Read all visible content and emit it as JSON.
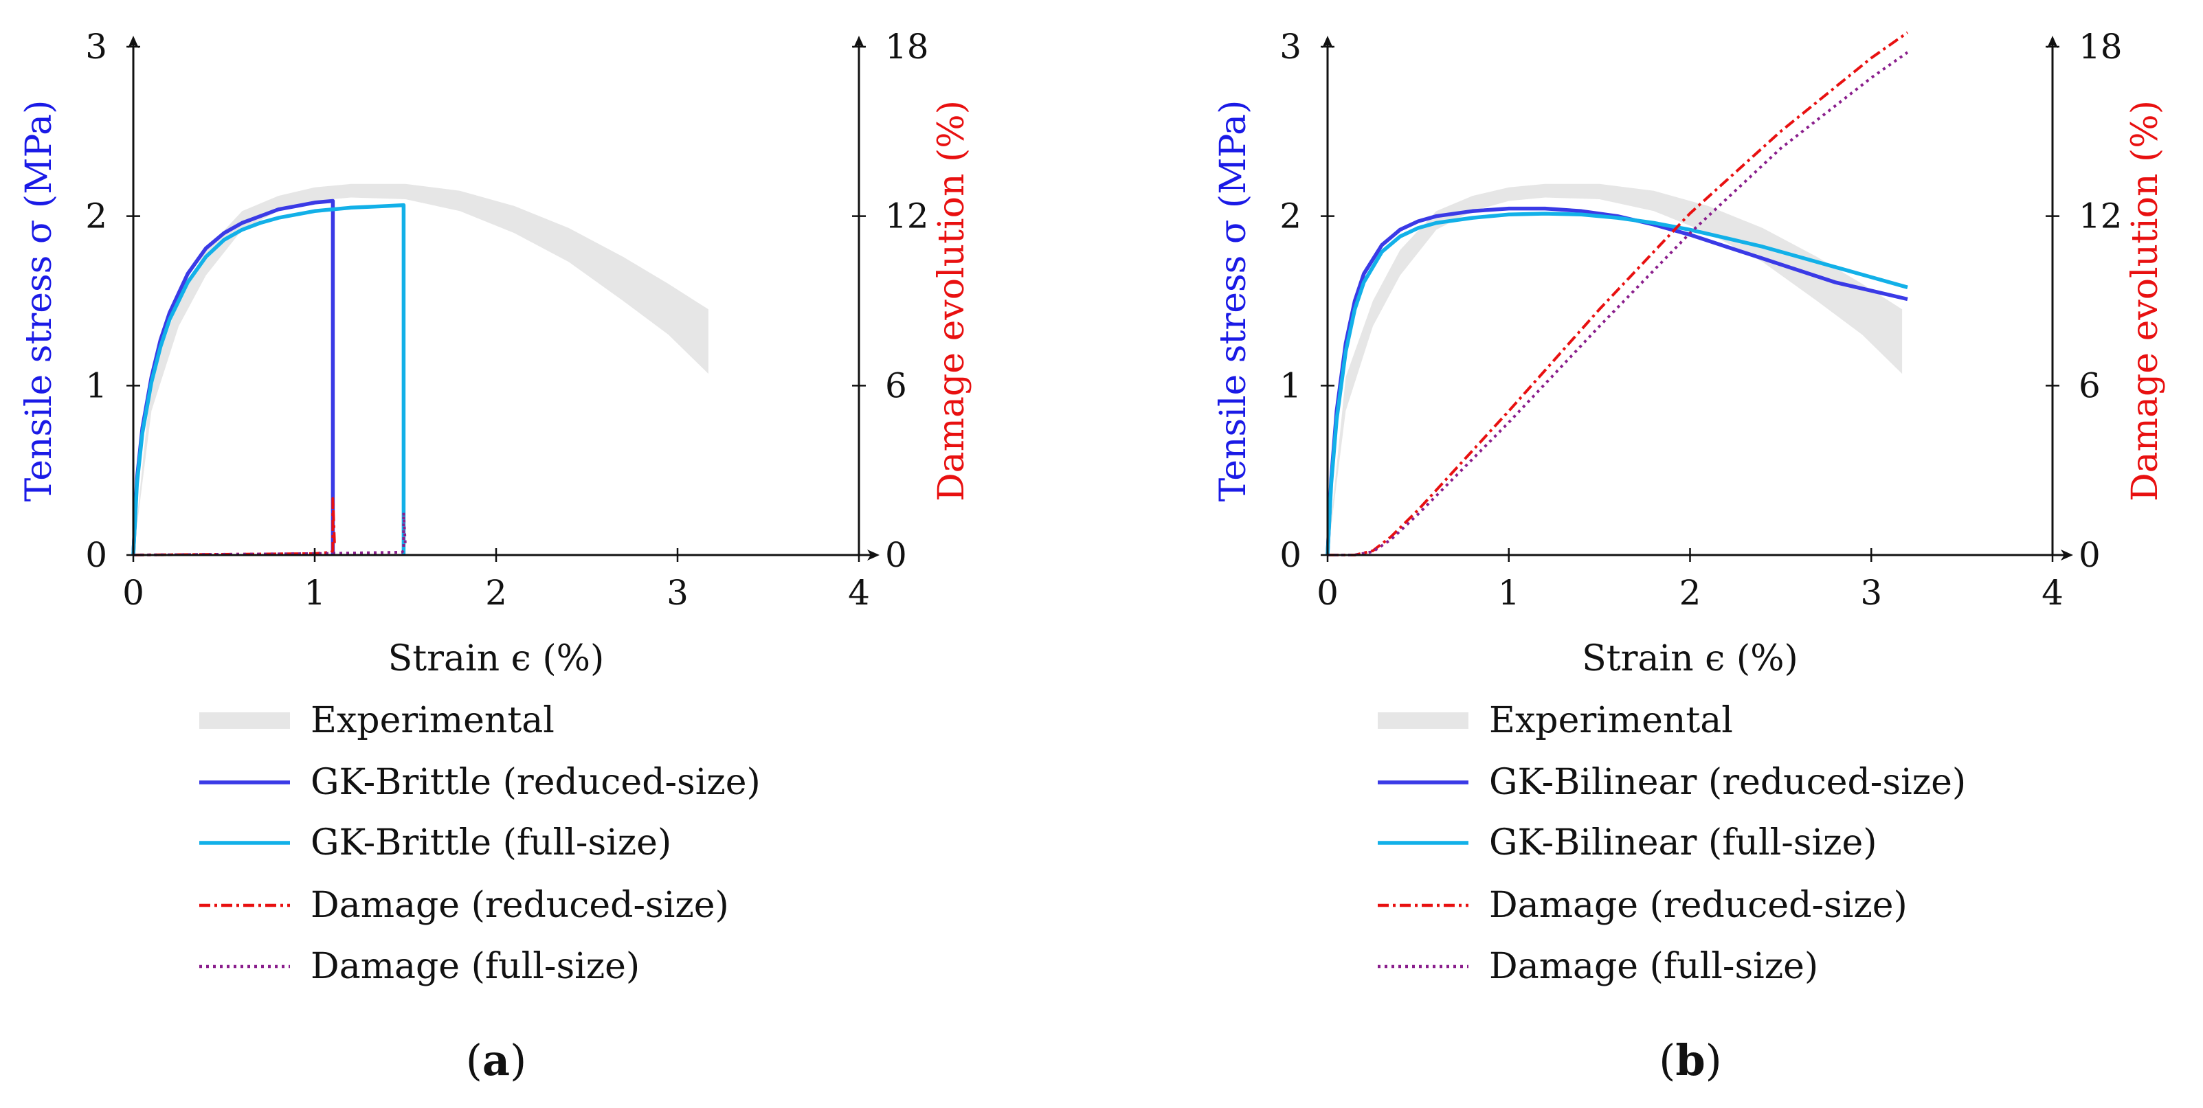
{
  "chart_data": [
    {
      "panel_label": "a",
      "type": "line",
      "xlabel": "Strain ϵ (%)",
      "ylabel": "Tensile stress σ (MPa)",
      "y2label": "Damage evolution (%)",
      "xlim": [
        0,
        4
      ],
      "ylim": [
        0,
        3
      ],
      "y2lim": [
        0,
        18
      ],
      "xticks": [
        0,
        1,
        2,
        3,
        4
      ],
      "yticks": [
        0,
        1,
        2,
        3
      ],
      "y2ticks": [
        0,
        6,
        12,
        18
      ],
      "band": {
        "name": "Experimental",
        "color": "#e6e6e6",
        "x": [
          0,
          0.1,
          0.25,
          0.4,
          0.6,
          0.8,
          1.0,
          1.2,
          1.5,
          1.8,
          2.1,
          2.4,
          2.7,
          2.95,
          3.17
        ],
        "upper": [
          0,
          1.05,
          1.5,
          1.8,
          2.03,
          2.12,
          2.17,
          2.19,
          2.19,
          2.15,
          2.06,
          1.93,
          1.76,
          1.6,
          1.45
        ],
        "lower": [
          0,
          0.85,
          1.35,
          1.65,
          1.92,
          2.03,
          2.09,
          2.11,
          2.1,
          2.03,
          1.9,
          1.73,
          1.5,
          1.3,
          1.07
        ]
      },
      "series": [
        {
          "name": "GK-Brittle (reduced-size)",
          "axis": "left",
          "color": "#3a3ae6",
          "dash": "",
          "x": [
            0,
            0.02,
            0.05,
            0.1,
            0.15,
            0.2,
            0.3,
            0.4,
            0.5,
            0.6,
            0.7,
            0.8,
            0.9,
            1.0,
            1.1,
            1.1
          ],
          "y": [
            0,
            0.45,
            0.75,
            1.05,
            1.27,
            1.43,
            1.66,
            1.81,
            1.9,
            1.96,
            2.0,
            2.04,
            2.06,
            2.08,
            2.09,
            0
          ]
        },
        {
          "name": "GK-Brittle (full-size)",
          "axis": "left",
          "color": "#12b0e8",
          "dash": "",
          "x": [
            0,
            0.02,
            0.05,
            0.1,
            0.15,
            0.2,
            0.3,
            0.4,
            0.5,
            0.6,
            0.7,
            0.8,
            0.9,
            1.0,
            1.1,
            1.2,
            1.3,
            1.4,
            1.49,
            1.49
          ],
          "y": [
            0,
            0.42,
            0.72,
            1.02,
            1.23,
            1.39,
            1.61,
            1.76,
            1.86,
            1.92,
            1.96,
            1.99,
            2.01,
            2.03,
            2.04,
            2.05,
            2.055,
            2.06,
            2.065,
            0
          ]
        },
        {
          "name": "Damage (reduced-size)",
          "axis": "right",
          "color": "#e81010",
          "dash": "16,6,4,6",
          "x": [
            0,
            1.0,
            1.09,
            1.1,
            1.1,
            1.11
          ],
          "y": [
            0,
            0.05,
            0.1,
            0.15,
            2.0,
            0.3
          ]
        },
        {
          "name": "Damage (full-size)",
          "axis": "right",
          "color": "#8a1e8c",
          "dash": "4,6",
          "x": [
            0,
            1.0,
            1.48,
            1.49,
            1.49,
            1.5
          ],
          "y": [
            0,
            0.05,
            0.1,
            0.15,
            1.5,
            0.3
          ]
        }
      ]
    },
    {
      "panel_label": "b",
      "type": "line",
      "xlabel": "Strain ϵ (%)",
      "ylabel": "Tensile stress σ (MPa)",
      "y2label": "Damage evolution (%)",
      "xlim": [
        0,
        4
      ],
      "ylim": [
        0,
        3
      ],
      "y2lim": [
        0,
        18
      ],
      "xticks": [
        0,
        1,
        2,
        3,
        4
      ],
      "yticks": [
        0,
        1,
        2,
        3
      ],
      "y2ticks": [
        0,
        6,
        12,
        18
      ],
      "band": {
        "name": "Experimental",
        "color": "#e6e6e6",
        "x": [
          0,
          0.1,
          0.25,
          0.4,
          0.6,
          0.8,
          1.0,
          1.2,
          1.5,
          1.8,
          2.1,
          2.4,
          2.7,
          2.95,
          3.17
        ],
        "upper": [
          0,
          1.05,
          1.5,
          1.8,
          2.03,
          2.12,
          2.17,
          2.19,
          2.19,
          2.15,
          2.06,
          1.93,
          1.76,
          1.6,
          1.45
        ],
        "lower": [
          0,
          0.85,
          1.35,
          1.65,
          1.92,
          2.03,
          2.09,
          2.11,
          2.1,
          2.03,
          1.9,
          1.73,
          1.5,
          1.3,
          1.07
        ]
      },
      "series": [
        {
          "name": "GK-Bilinear (reduced-size)",
          "axis": "left",
          "color": "#3a3ae6",
          "dash": "",
          "x": [
            0,
            0.02,
            0.05,
            0.1,
            0.15,
            0.2,
            0.3,
            0.4,
            0.5,
            0.6,
            0.8,
            1.0,
            1.2,
            1.4,
            1.6,
            1.8,
            2.0,
            2.2,
            2.4,
            2.6,
            2.8,
            3.0,
            3.2
          ],
          "y": [
            0,
            0.45,
            0.85,
            1.25,
            1.5,
            1.66,
            1.83,
            1.92,
            1.97,
            2.0,
            2.03,
            2.045,
            2.045,
            2.03,
            2.0,
            1.95,
            1.89,
            1.82,
            1.75,
            1.68,
            1.61,
            1.56,
            1.51
          ]
        },
        {
          "name": "GK-Bilinear (full-size)",
          "axis": "left",
          "color": "#12b0e8",
          "dash": "",
          "x": [
            0,
            0.02,
            0.05,
            0.1,
            0.15,
            0.2,
            0.3,
            0.4,
            0.5,
            0.6,
            0.8,
            1.0,
            1.2,
            1.4,
            1.6,
            1.8,
            2.0,
            2.2,
            2.4,
            2.6,
            2.8,
            3.0,
            3.2
          ],
          "y": [
            0,
            0.42,
            0.8,
            1.2,
            1.45,
            1.61,
            1.79,
            1.88,
            1.93,
            1.96,
            1.99,
            2.01,
            2.015,
            2.01,
            1.99,
            1.96,
            1.92,
            1.87,
            1.82,
            1.76,
            1.7,
            1.64,
            1.58
          ]
        },
        {
          "name": "Damage (reduced-size)",
          "axis": "right",
          "color": "#e81010",
          "dash": "16,6,4,6",
          "x": [
            0,
            0.15,
            0.25,
            0.35,
            0.5,
            1.0,
            1.5,
            2.0,
            2.5,
            3.0,
            3.2
          ],
          "y": [
            0,
            0,
            0.15,
            0.65,
            1.6,
            5.1,
            8.7,
            12.1,
            15.0,
            17.6,
            18.5
          ]
        },
        {
          "name": "Damage (full-size)",
          "axis": "right",
          "color": "#8a1e8c",
          "dash": "4,6",
          "x": [
            0,
            0.15,
            0.25,
            0.35,
            0.5,
            1.0,
            1.5,
            2.0,
            2.5,
            3.0,
            3.2
          ],
          "y": [
            0,
            0,
            0.12,
            0.55,
            1.45,
            4.7,
            8.1,
            11.4,
            14.4,
            16.9,
            17.8
          ]
        }
      ]
    }
  ]
}
